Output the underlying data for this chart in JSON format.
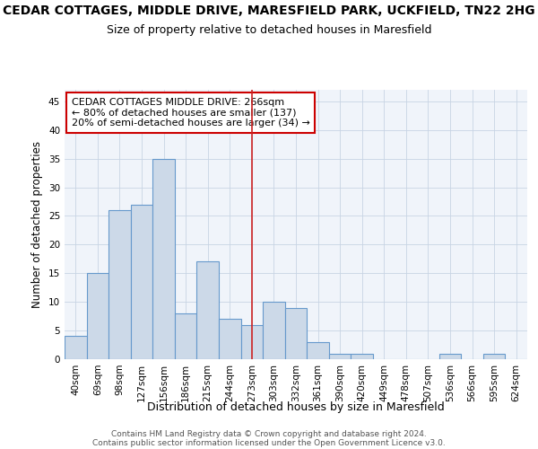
{
  "title": "CEDAR COTTAGES, MIDDLE DRIVE, MARESFIELD PARK, UCKFIELD, TN22 2HG",
  "subtitle": "Size of property relative to detached houses in Maresfield",
  "xlabel": "Distribution of detached houses by size in Maresfield",
  "ylabel": "Number of detached properties",
  "categories": [
    "40sqm",
    "69sqm",
    "98sqm",
    "127sqm",
    "156sqm",
    "186sqm",
    "215sqm",
    "244sqm",
    "273sqm",
    "303sqm",
    "332sqm",
    "361sqm",
    "390sqm",
    "420sqm",
    "449sqm",
    "478sqm",
    "507sqm",
    "536sqm",
    "566sqm",
    "595sqm",
    "624sqm"
  ],
  "values": [
    4,
    15,
    26,
    27,
    35,
    8,
    17,
    7,
    6,
    10,
    9,
    3,
    1,
    1,
    0,
    0,
    0,
    1,
    0,
    1,
    0
  ],
  "bar_color": "#ccd9e8",
  "bar_edgecolor": "#6699cc",
  "vline_index": 8,
  "vline_color": "#cc2222",
  "annotation_line1": "CEDAR COTTAGES MIDDLE DRIVE: 266sqm",
  "annotation_line2": "← 80% of detached houses are smaller (137)",
  "annotation_line3": "20% of semi-detached houses are larger (34) →",
  "annotation_box_edgecolor": "#cc0000",
  "footer_line1": "Contains HM Land Registry data © Crown copyright and database right 2024.",
  "footer_line2": "Contains public sector information licensed under the Open Government Licence v3.0.",
  "ylim": [
    0,
    47
  ],
  "yticks": [
    0,
    5,
    10,
    15,
    20,
    25,
    30,
    35,
    40,
    45
  ],
  "title_fontsize": 10,
  "subtitle_fontsize": 9,
  "ylabel_fontsize": 8.5,
  "xlabel_fontsize": 9,
  "tick_fontsize": 7.5,
  "annotation_fontsize": 8,
  "footer_fontsize": 6.5
}
